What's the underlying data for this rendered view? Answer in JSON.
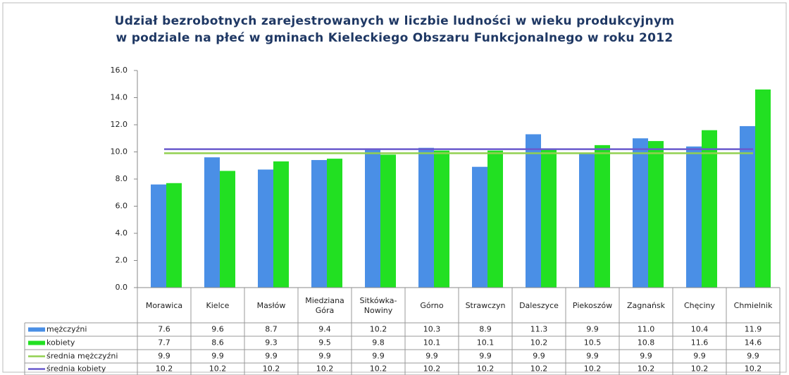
{
  "chart_data": {
    "type": "bar",
    "title": "Udział bezrobotnych zarejestrowanych w liczbie ludności w wieku produkcyjnym\nw podziale na płeć w gminach Kieleckiego Obszaru Funkcjonalnego w roku 2012",
    "categories": [
      "Morawica",
      "Kielce",
      "Masłów",
      "Miedziana Góra",
      "Sitkówka-Nowiny",
      "Górno",
      "Strawczyn",
      "Daleszyce",
      "Piekoszów",
      "Zagnańsk",
      "Chęciny",
      "Chmielnik"
    ],
    "series": [
      {
        "name": "mężczyźni",
        "type": "bar",
        "color": "#4a8fe6",
        "values": [
          7.6,
          9.6,
          8.7,
          9.4,
          10.2,
          10.3,
          8.9,
          11.3,
          9.9,
          11.0,
          10.4,
          11.9
        ],
        "value_labels": [
          "7.6",
          "9.6",
          "8.7",
          "9.4",
          "10.2",
          "10.3",
          "8.9",
          "11.3",
          "9.9",
          "11.0",
          "10.4",
          "11.9"
        ]
      },
      {
        "name": "kobiety",
        "type": "bar",
        "color": "#22e022",
        "values": [
          7.7,
          8.6,
          9.3,
          9.5,
          9.8,
          10.1,
          10.1,
          10.2,
          10.5,
          10.8,
          11.6,
          14.6
        ],
        "value_labels": [
          "7.7",
          "8.6",
          "9.3",
          "9.5",
          "9.8",
          "10.1",
          "10.1",
          "10.2",
          "10.5",
          "10.8",
          "11.6",
          "14.6"
        ]
      },
      {
        "name": "średnia mężczyźni",
        "type": "line",
        "color": "#92d050",
        "values": [
          9.9,
          9.9,
          9.9,
          9.9,
          9.9,
          9.9,
          9.9,
          9.9,
          9.9,
          9.9,
          9.9,
          9.9
        ],
        "value_labels": [
          "9.9",
          "9.9",
          "9.9",
          "9.9",
          "9.9",
          "9.9",
          "9.9",
          "9.9",
          "9.9",
          "9.9",
          "9.9",
          "9.9"
        ]
      },
      {
        "name": "średnia kobiety",
        "type": "line",
        "color": "#6a5acd",
        "values": [
          10.2,
          10.2,
          10.2,
          10.2,
          10.2,
          10.2,
          10.2,
          10.2,
          10.2,
          10.2,
          10.2,
          10.2
        ],
        "value_labels": [
          "10.2",
          "10.2",
          "10.2",
          "10.2",
          "10.2",
          "10.2",
          "10.2",
          "10.2",
          "10.2",
          "10.2",
          "10.2",
          "10.2"
        ]
      }
    ],
    "ylim": [
      0,
      16
    ],
    "yticks": [
      {
        "value": 0,
        "label": "0.0"
      },
      {
        "value": 2,
        "label": "2.0"
      },
      {
        "value": 4,
        "label": "4.0"
      },
      {
        "value": 6,
        "label": "6.0"
      },
      {
        "value": 8,
        "label": "8.0"
      },
      {
        "value": 10,
        "label": "10.0"
      },
      {
        "value": 12,
        "label": "12.0"
      },
      {
        "value": 14,
        "label": "14.0"
      },
      {
        "value": 16,
        "label": "16.0"
      }
    ],
    "grid": false
  }
}
